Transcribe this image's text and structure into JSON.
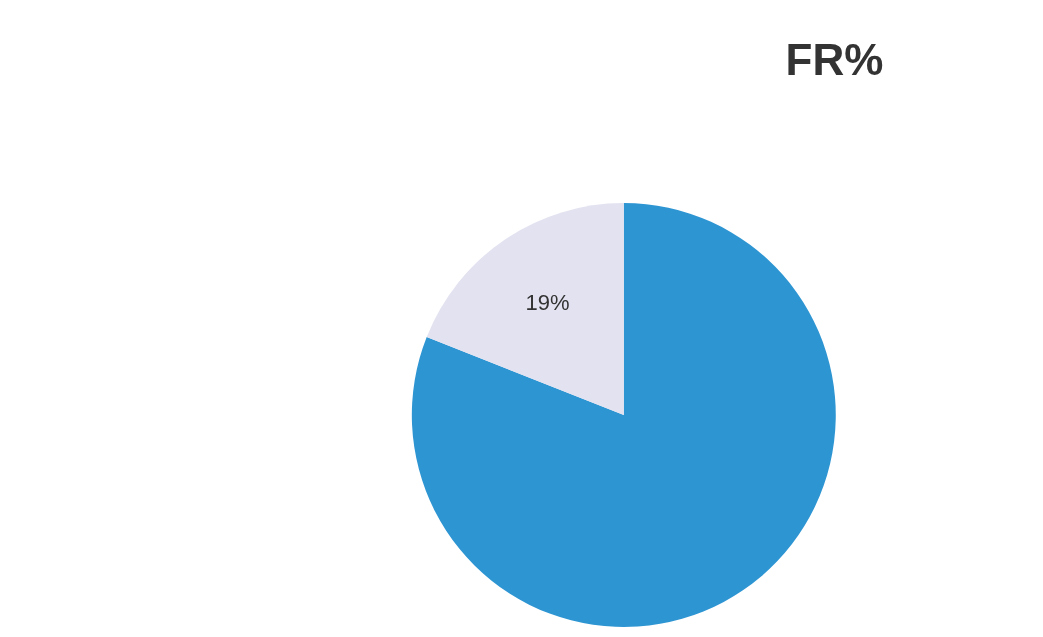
{
  "chart_data": {
    "type": "pie",
    "title": "FR%",
    "categories": [
      null,
      null
    ],
    "values": [
      81,
      19
    ],
    "colors": [
      "#2e95d3",
      "#e2e2f0"
    ],
    "value_labels": [
      null,
      "19%"
    ],
    "legend": false
  }
}
